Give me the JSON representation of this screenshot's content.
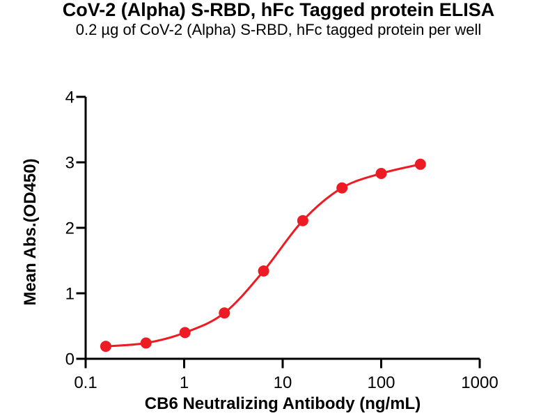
{
  "figure": {
    "title": "CoV-2 (Alpha) S-RBD, hFc Tagged protein ELISA",
    "subtitle": "0.2 µg of CoV-2 (Alpha) S-RBD, hFc tagged protein per well"
  },
  "chart_data": {
    "type": "scatter",
    "title": "CoV-2 (Alpha) S-RBD, hFc Tagged protein ELISA",
    "subtitle": "0.2 µg of CoV-2 (Alpha) S-RBD, hFc tagged protein per well",
    "xlabel": "CB6 Neutralizing Antibody (ng/mL)",
    "ylabel": "Mean Abs.(OD450)",
    "x_scale": "log10",
    "xlim": [
      0.1,
      1000
    ],
    "ylim": [
      0,
      4
    ],
    "x_ticks": [
      0.1,
      1,
      10,
      100,
      1000
    ],
    "x_tick_labels": [
      "0.1",
      "1",
      "10",
      "100",
      "1000"
    ],
    "y_ticks": [
      0,
      1,
      2,
      3,
      4
    ],
    "y_tick_labels": [
      "0",
      "1",
      "2",
      "3",
      "4"
    ],
    "grid": false,
    "legend": false,
    "series": [
      {
        "name": "CB6 Neutralizing Antibody",
        "marker": "circle",
        "line": "sigmoidal-fit",
        "x": [
          0.16,
          0.41,
          1.02,
          2.56,
          6.4,
          16,
          40,
          100,
          250
        ],
        "y": [
          0.19,
          0.24,
          0.4,
          0.7,
          1.34,
          2.11,
          2.61,
          2.83,
          2.97
        ]
      }
    ],
    "colors": {
      "series": "#ED1C24",
      "axis": "#000000",
      "background": "#FFFFFF"
    }
  }
}
